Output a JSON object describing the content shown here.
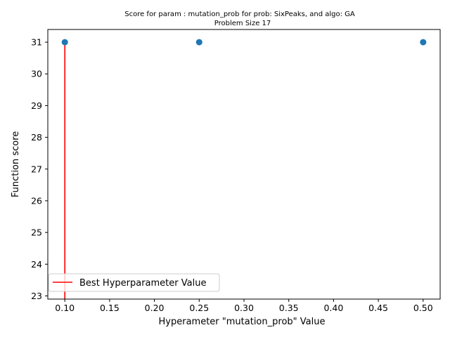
{
  "chart_data": {
    "type": "scatter",
    "title_line1": "Score for param : mutation_prob for prob: SixPeaks, and algo: GA",
    "title_line2": "Problem Size 17",
    "xlabel": "Hyperameter \"mutation_prob\" Value",
    "ylabel": "Function score",
    "xlim": [
      0.081,
      0.519
    ],
    "ylim": [
      22.9,
      31.4
    ],
    "xticks": [
      0.1,
      0.15,
      0.2,
      0.25,
      0.3,
      0.35,
      0.4,
      0.45,
      0.5
    ],
    "xtick_labels": [
      "0.10",
      "0.15",
      "0.20",
      "0.25",
      "0.30",
      "0.35",
      "0.40",
      "0.45",
      "0.50"
    ],
    "yticks": [
      23,
      24,
      25,
      26,
      27,
      28,
      29,
      30,
      31
    ],
    "ytick_labels": [
      "23",
      "24",
      "25",
      "26",
      "27",
      "28",
      "29",
      "30",
      "31"
    ],
    "series": [
      {
        "name": "scores",
        "x": [
          0.1,
          0.25,
          0.5
        ],
        "y": [
          31,
          31,
          31
        ],
        "color": "#1f77b4"
      }
    ],
    "best_line": {
      "label": "Best Hyperparameter Value",
      "x": 0.1,
      "y_from": 22.9,
      "y_to": 31,
      "color": "#ff0000"
    },
    "legend_position": "lower-left",
    "grid": false
  }
}
